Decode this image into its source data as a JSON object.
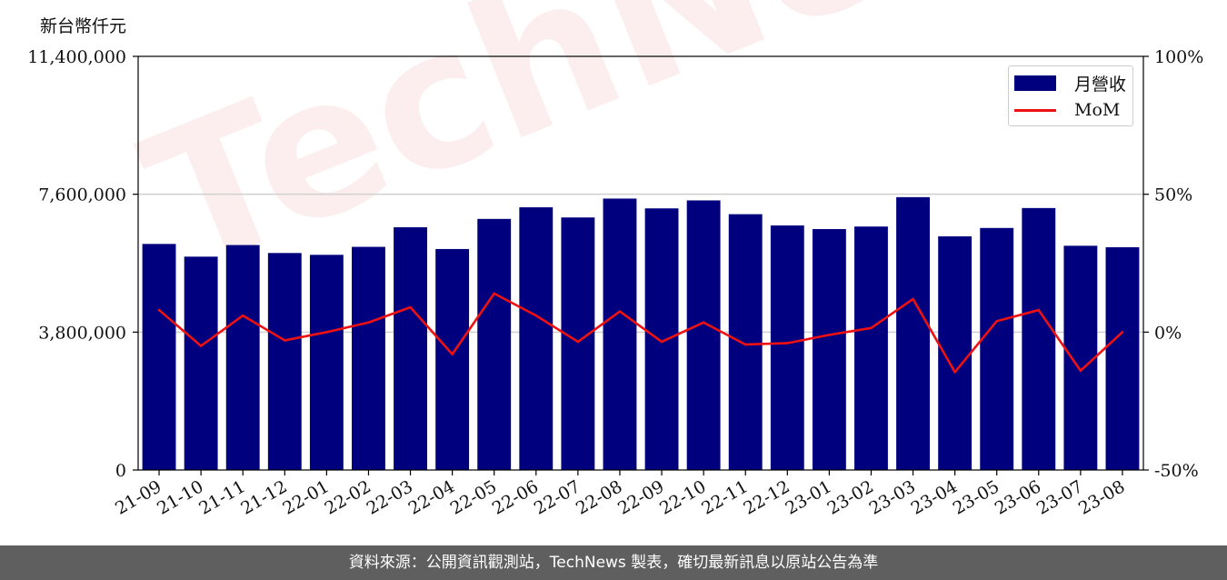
{
  "unit_label": "新台幣仟元",
  "footer_text": "資料來源：公開資訊觀測站，TechNews 製表，確切最新訊息以原站公告為準",
  "watermark_text": "TechNews",
  "colors": {
    "bar": "#00007f",
    "line": "#ee1111",
    "grid": "#d0d0d0",
    "footer_bg": "#5f5f5f"
  },
  "chart_data": {
    "type": "bar",
    "categories": [
      "21-09",
      "21-10",
      "21-11",
      "21-12",
      "22-01",
      "22-02",
      "22-03",
      "22-04",
      "22-05",
      "22-06",
      "22-07",
      "22-08",
      "22-09",
      "22-10",
      "22-11",
      "22-12",
      "23-01",
      "23-02",
      "23-03",
      "23-04",
      "23-05",
      "23-06",
      "23-07",
      "23-08"
    ],
    "series": [
      {
        "name": "月營收",
        "type": "bar",
        "axis": "left",
        "values": [
          6230000,
          5880000,
          6200000,
          5980000,
          5930000,
          6150000,
          6690000,
          6090000,
          6920000,
          7240000,
          6960000,
          7480000,
          7210000,
          7430000,
          7050000,
          6740000,
          6640000,
          6710000,
          7520000,
          6440000,
          6670000,
          7220000,
          6180000,
          6140000
        ]
      },
      {
        "name": "MoM",
        "type": "line",
        "axis": "right",
        "values": [
          8,
          -5,
          6,
          -3,
          0,
          3.5,
          9,
          -8,
          14,
          6,
          -3.5,
          7.5,
          -3.5,
          3.5,
          -4.5,
          -4,
          -1,
          1.5,
          12,
          -14.5,
          4,
          8,
          -14,
          0
        ]
      }
    ],
    "y_left": {
      "min": 0,
      "max": 11400000,
      "ticks": [
        0,
        3800000,
        7600000,
        11400000
      ],
      "tick_labels": [
        "0",
        "3,800,000",
        "7,600,000",
        "11,400,000"
      ]
    },
    "y_right": {
      "min": -50,
      "max": 100,
      "ticks": [
        -50,
        0,
        50,
        100
      ],
      "tick_labels": [
        "-50%",
        "0%",
        "50%",
        "100%"
      ]
    },
    "grid": "horizontal",
    "legend_position": "top-right"
  }
}
